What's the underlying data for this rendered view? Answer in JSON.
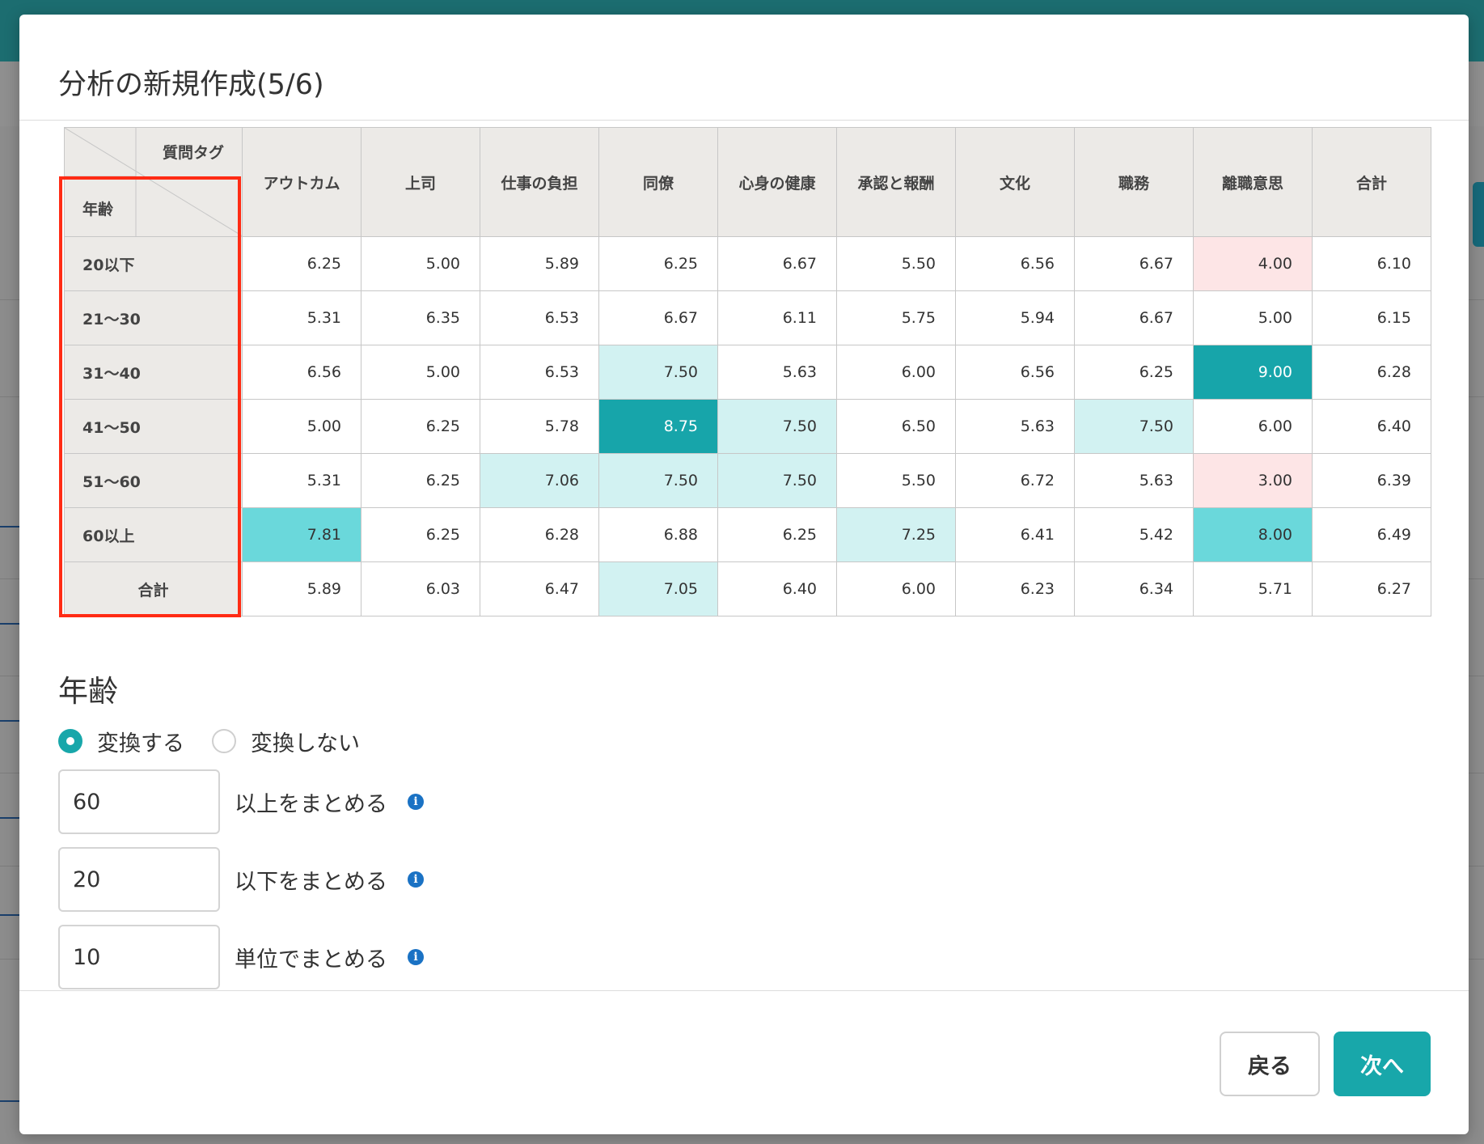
{
  "dialog": {
    "title": "分析の新規作成(5/6)"
  },
  "table": {
    "corner_tag_label": "質問タグ",
    "corner_row_label": "年齢",
    "columns": [
      "アウトカム",
      "上司",
      "仕事の負担",
      "同僚",
      "心身の健康",
      "承認と報酬",
      "文化",
      "職務",
      "離職意思",
      "合計"
    ],
    "rows": [
      {
        "label": "20以下",
        "values": [
          "6.25",
          "5.00",
          "5.89",
          "6.25",
          "6.67",
          "5.50",
          "6.56",
          "6.67",
          "4.00",
          "6.10"
        ],
        "highlights": [
          "",
          "",
          "",
          "",
          "",
          "",
          "",
          "",
          "pink",
          ""
        ]
      },
      {
        "label": "21〜30",
        "values": [
          "5.31",
          "6.35",
          "6.53",
          "6.67",
          "6.11",
          "5.75",
          "5.94",
          "6.67",
          "5.00",
          "6.15"
        ],
        "highlights": [
          "",
          "",
          "",
          "",
          "",
          "",
          "",
          "",
          "",
          ""
        ]
      },
      {
        "label": "31〜40",
        "values": [
          "6.56",
          "5.00",
          "6.53",
          "7.50",
          "5.63",
          "6.00",
          "6.56",
          "6.25",
          "9.00",
          "6.28"
        ],
        "highlights": [
          "",
          "",
          "",
          "light",
          "",
          "",
          "",
          "",
          "dark",
          ""
        ]
      },
      {
        "label": "41〜50",
        "values": [
          "5.00",
          "6.25",
          "5.78",
          "8.75",
          "7.50",
          "6.50",
          "5.63",
          "7.50",
          "6.00",
          "6.40"
        ],
        "highlights": [
          "",
          "",
          "",
          "dark",
          "light",
          "",
          "",
          "light",
          "",
          ""
        ]
      },
      {
        "label": "51〜60",
        "values": [
          "5.31",
          "6.25",
          "7.06",
          "7.50",
          "7.50",
          "5.50",
          "6.72",
          "5.63",
          "3.00",
          "6.39"
        ],
        "highlights": [
          "",
          "",
          "light",
          "light",
          "light",
          "",
          "",
          "",
          "pink",
          ""
        ]
      },
      {
        "label": "60以上",
        "values": [
          "7.81",
          "6.25",
          "6.28",
          "6.88",
          "6.25",
          "7.25",
          "6.41",
          "5.42",
          "8.00",
          "6.49"
        ],
        "highlights": [
          "mid",
          "",
          "",
          "",
          "",
          "light",
          "",
          "",
          "mid",
          ""
        ]
      },
      {
        "label": "合計",
        "values": [
          "5.89",
          "6.03",
          "6.47",
          "7.05",
          "6.40",
          "6.00",
          "6.23",
          "6.34",
          "5.71",
          "6.27"
        ],
        "highlights": [
          "",
          "",
          "",
          "light",
          "",
          "",
          "",
          "",
          "",
          ""
        ]
      }
    ],
    "highlight_colors": {
      "light": "#d2f2f2",
      "mid": "#6ad8db",
      "dark": "#17a5aa",
      "pink": "#fde5e6"
    }
  },
  "age_section": {
    "title": "年齢",
    "radio_convert": "変換する",
    "radio_no_convert": "変換しない",
    "selected": "変換する",
    "fields": [
      {
        "value": "60",
        "label": "以上をまとめる"
      },
      {
        "value": "20",
        "label": "以下をまとめる"
      },
      {
        "value": "10",
        "label": "単位でまとめる"
      }
    ]
  },
  "footer": {
    "back_label": "戻る",
    "next_label": "次へ"
  },
  "colors": {
    "accent": "#18a7aa",
    "annotation_box": "#ff2b14",
    "info_icon": "#1a72c4"
  }
}
